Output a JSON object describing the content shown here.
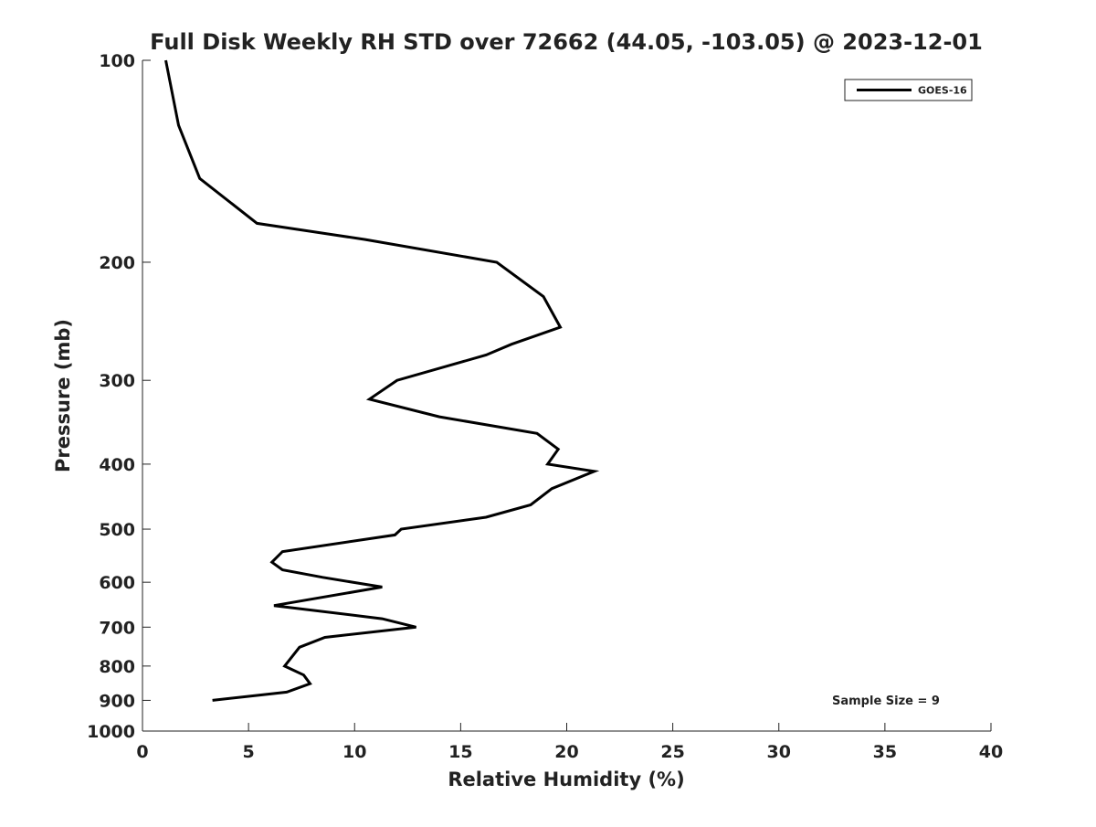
{
  "chart_data": {
    "type": "line",
    "title": "Full Disk Weekly RH STD over 72662 (44.05, -103.05) @ 2023-12-01",
    "xlabel": "Relative Humidity (%)",
    "ylabel": "Pressure (mb)",
    "xlim": [
      0,
      40
    ],
    "ylim": [
      100,
      1000
    ],
    "y_scale": "log",
    "y_inverted": true,
    "x_ticks": [
      0,
      5,
      10,
      15,
      20,
      25,
      30,
      35,
      40
    ],
    "y_ticks": [
      100,
      200,
      300,
      400,
      500,
      600,
      700,
      800,
      900,
      1000
    ],
    "grid": false,
    "legend_position": "top-right",
    "annotation": "Sample Size = 9",
    "series": [
      {
        "name": "GOES-16",
        "color": "#000000",
        "points": [
          {
            "rh": 1.1,
            "p": 100
          },
          {
            "rh": 1.7,
            "p": 125
          },
          {
            "rh": 2.7,
            "p": 150
          },
          {
            "rh": 5.4,
            "p": 175
          },
          {
            "rh": 10.5,
            "p": 185
          },
          {
            "rh": 16.7,
            "p": 200
          },
          {
            "rh": 18.9,
            "p": 225
          },
          {
            "rh": 19.7,
            "p": 250
          },
          {
            "rh": 17.4,
            "p": 265
          },
          {
            "rh": 16.2,
            "p": 275
          },
          {
            "rh": 12.0,
            "p": 300
          },
          {
            "rh": 10.7,
            "p": 320
          },
          {
            "rh": 14.0,
            "p": 340
          },
          {
            "rh": 18.6,
            "p": 360
          },
          {
            "rh": 19.6,
            "p": 380
          },
          {
            "rh": 19.1,
            "p": 400
          },
          {
            "rh": 21.3,
            "p": 410
          },
          {
            "rh": 19.3,
            "p": 435
          },
          {
            "rh": 18.3,
            "p": 460
          },
          {
            "rh": 16.2,
            "p": 480
          },
          {
            "rh": 12.2,
            "p": 500
          },
          {
            "rh": 11.9,
            "p": 510
          },
          {
            "rh": 6.6,
            "p": 540
          },
          {
            "rh": 6.1,
            "p": 560
          },
          {
            "rh": 6.6,
            "p": 575
          },
          {
            "rh": 8.5,
            "p": 590
          },
          {
            "rh": 11.3,
            "p": 610
          },
          {
            "rh": 6.2,
            "p": 650
          },
          {
            "rh": 11.3,
            "p": 680
          },
          {
            "rh": 12.9,
            "p": 700
          },
          {
            "rh": 8.6,
            "p": 725
          },
          {
            "rh": 7.4,
            "p": 750
          },
          {
            "rh": 6.7,
            "p": 800
          },
          {
            "rh": 7.6,
            "p": 825
          },
          {
            "rh": 7.9,
            "p": 850
          },
          {
            "rh": 6.8,
            "p": 875
          },
          {
            "rh": 3.3,
            "p": 900
          }
        ]
      }
    ]
  }
}
